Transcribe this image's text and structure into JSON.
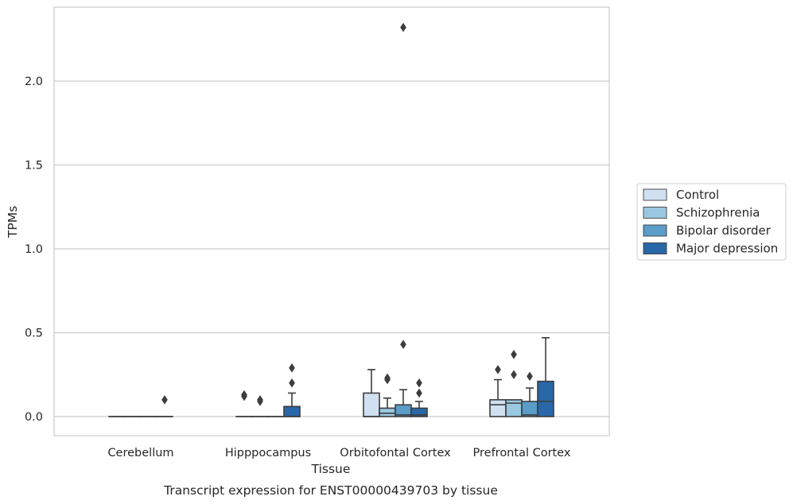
{
  "chart_data": {
    "type": "box",
    "title": "",
    "caption": "Transcript expression for ENST00000439703 by tissue",
    "xlabel": "Tissue",
    "ylabel": "TPMs",
    "ylim": [
      -0.115,
      2.445
    ],
    "yticks": [
      0.0,
      0.5,
      1.0,
      1.5,
      2.0
    ],
    "ytick_labels": [
      "0.0",
      "0.5",
      "1.0",
      "1.5",
      "2.0"
    ],
    "grid": "horizontal",
    "legend_position": "right",
    "categories": [
      "Cerebellum",
      "Hipppocampus",
      "Orbitofontal Cortex",
      "Prefrontal Cortex"
    ],
    "series": [
      {
        "name": "Control",
        "color": "#d0e0f1",
        "boxes": [
          {
            "q1": 0,
            "median": 0,
            "q3": 0,
            "whisker_low": 0,
            "whisker_high": 0,
            "outliers": []
          },
          {
            "q1": 0,
            "median": 0,
            "q3": 0,
            "whisker_low": 0,
            "whisker_high": 0,
            "outliers": [
              0.12,
              0.13
            ]
          },
          {
            "q1": 0,
            "median": 0,
            "q3": 0.14,
            "whisker_low": 0,
            "whisker_high": 0.28,
            "outliers": []
          },
          {
            "q1": 0,
            "median": 0.07,
            "q3": 0.1,
            "whisker_low": 0,
            "whisker_high": 0.22,
            "outliers": [
              0.28
            ]
          }
        ]
      },
      {
        "name": "Schizophrenia",
        "color": "#9ac8e0",
        "boxes": [
          {
            "q1": 0,
            "median": 0,
            "q3": 0,
            "whisker_low": 0,
            "whisker_high": 0,
            "outliers": []
          },
          {
            "q1": 0,
            "median": 0,
            "q3": 0,
            "whisker_low": 0,
            "whisker_high": 0,
            "outliers": [
              0.09,
              0.1
            ]
          },
          {
            "q1": 0,
            "median": 0.02,
            "q3": 0.05,
            "whisker_low": 0,
            "whisker_high": 0.11,
            "outliers": [
              0.22,
              0.23
            ]
          },
          {
            "q1": 0,
            "median": 0.08,
            "q3": 0.1,
            "whisker_low": 0,
            "whisker_high": 0.1,
            "outliers": [
              0.25,
              0.37
            ]
          }
        ]
      },
      {
        "name": "Bipolar disorder",
        "color": "#5b9cc9",
        "boxes": [
          {
            "q1": 0,
            "median": 0,
            "q3": 0,
            "whisker_low": 0,
            "whisker_high": 0,
            "outliers": []
          },
          {
            "q1": 0,
            "median": 0,
            "q3": 0,
            "whisker_low": 0,
            "whisker_high": 0,
            "outliers": []
          },
          {
            "q1": 0,
            "median": 0.01,
            "q3": 0.07,
            "whisker_low": 0,
            "whisker_high": 0.16,
            "outliers": [
              0.43,
              2.32
            ]
          },
          {
            "q1": 0,
            "median": 0.01,
            "q3": 0.09,
            "whisker_low": 0,
            "whisker_high": 0.17,
            "outliers": [
              0.24
            ]
          }
        ]
      },
      {
        "name": "Major depression",
        "color": "#2868a8",
        "boxes": [
          {
            "q1": 0,
            "median": 0,
            "q3": 0,
            "whisker_low": 0,
            "whisker_high": 0,
            "outliers": [
              0.1
            ]
          },
          {
            "q1": 0,
            "median": 0,
            "q3": 0.06,
            "whisker_low": 0,
            "whisker_high": 0.14,
            "outliers": [
              0.2,
              0.29
            ]
          },
          {
            "q1": 0,
            "median": 0.01,
            "q3": 0.05,
            "whisker_low": 0,
            "whisker_high": 0.09,
            "outliers": [
              0.14,
              0.2
            ]
          },
          {
            "q1": 0,
            "median": 0.09,
            "q3": 0.21,
            "whisker_low": 0,
            "whisker_high": 0.47,
            "outliers": []
          }
        ]
      }
    ]
  }
}
